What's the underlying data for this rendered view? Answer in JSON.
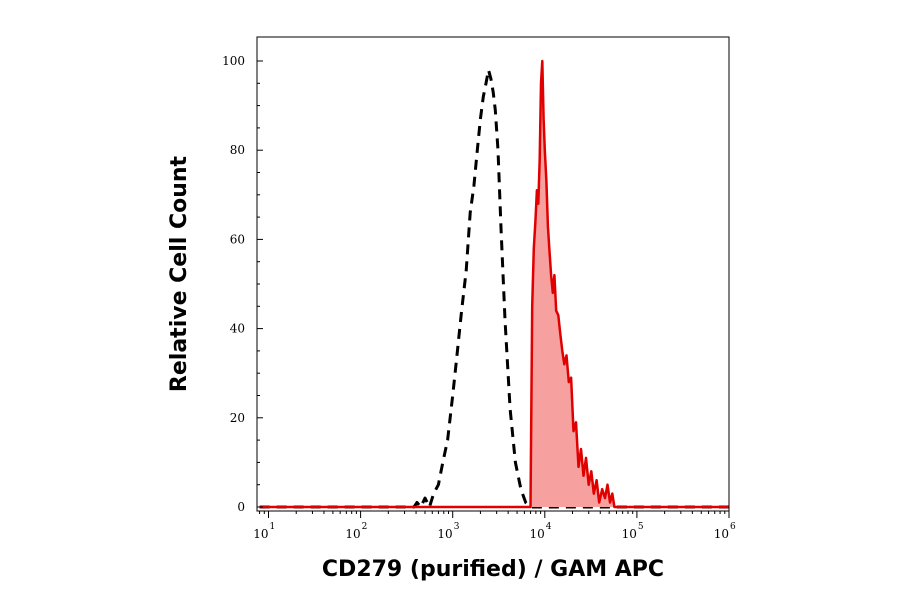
{
  "chart_data": {
    "type": "area",
    "xlabel": "CD279 (purified) / GAM APC",
    "ylabel": "Relative Cell Count",
    "x_scale": "log",
    "xlim": [
      7.5,
      1000000
    ],
    "ylim": [
      0,
      100
    ],
    "x_ticks": [
      {
        "base": "10",
        "exp": "1",
        "value": 10
      },
      {
        "base": "10",
        "exp": "2",
        "value": 100
      },
      {
        "base": "10",
        "exp": "3",
        "value": 1000
      },
      {
        "base": "10",
        "exp": "4",
        "value": 10000
      },
      {
        "base": "10",
        "exp": "5",
        "value": 100000
      },
      {
        "base": "10",
        "exp": "6",
        "value": 1000000
      }
    ],
    "y_ticks": [
      "0",
      "20",
      "40",
      "60",
      "80",
      "100"
    ],
    "grid": false,
    "series": [
      {
        "style": "dashed",
        "color": "#000000",
        "fill": "none",
        "x": [
          8,
          380,
          410,
          450,
          500,
          560,
          620,
          700,
          780,
          880,
          1000,
          1100,
          1250,
          1400,
          1550,
          1700,
          1850,
          2000,
          2150,
          2300,
          2450,
          2600,
          2750,
          2900,
          3100,
          3350,
          3700,
          4200,
          4800,
          5500,
          6200,
          7000,
          1000000
        ],
        "y": [
          0,
          0,
          1,
          0,
          2,
          0,
          3,
          5,
          10,
          15,
          25,
          33,
          44,
          53,
          66,
          72,
          80,
          87,
          92,
          95,
          98,
          96,
          93,
          89,
          80,
          62,
          42,
          22,
          10,
          4,
          1,
          0,
          0
        ]
      },
      {
        "style": "solid",
        "color": "#e00000",
        "fill": "#f7a0a0",
        "x": [
          8,
          7000,
          7300,
          7600,
          7900,
          8200,
          8500,
          8800,
          9100,
          9400,
          9700,
          10000,
          10400,
          10800,
          11200,
          11700,
          12200,
          12700,
          13300,
          14000,
          14700,
          15500,
          16300,
          17200,
          18200,
          19300,
          20500,
          21800,
          23200,
          24700,
          26300,
          28000,
          30000,
          32000,
          34000,
          36500,
          39000,
          42000,
          45000,
          48000,
          51000,
          54000,
          57000,
          60000,
          1000000
        ],
        "y": [
          0,
          0,
          45,
          58,
          64,
          71,
          68,
          78,
          95,
          100,
          87,
          80,
          73,
          63,
          58,
          52,
          48,
          52,
          44,
          43,
          39,
          35,
          32,
          34,
          28,
          29,
          17,
          19,
          9,
          13,
          7,
          11,
          5,
          8,
          3,
          6,
          1,
          4,
          2,
          5,
          1,
          3,
          0,
          0,
          0
        ]
      }
    ]
  }
}
